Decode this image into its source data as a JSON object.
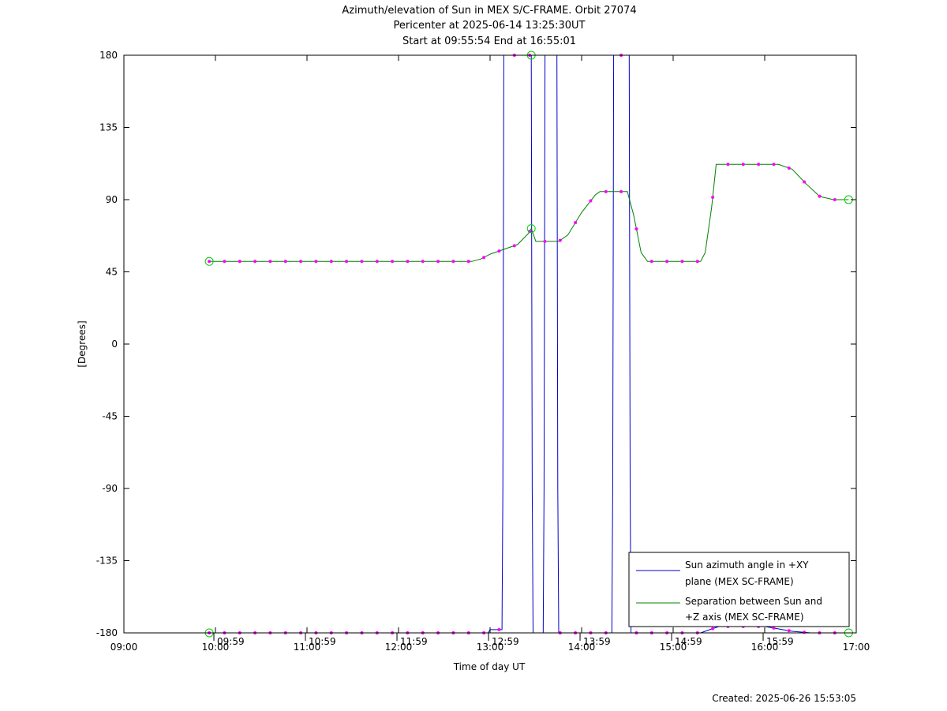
{
  "chart_data": {
    "type": "line",
    "title": "Azimuth/elevation of Sun in MEX S/C-FRAME.  Orbit 27074",
    "subtitle_1": "Pericenter at 2025-06-14 13:25:30UT",
    "subtitle_2": "Start at 09:55:54 End at 16:55:01",
    "xlabel": "Time of day UT",
    "ylabel": "[Degrees]",
    "x_unit": "hours of day (UT)",
    "xlim": [
      9,
      17
    ],
    "ylim": [
      -180,
      180
    ],
    "x_ticks": [
      {
        "value": 9,
        "label": "09:00"
      },
      {
        "value": 10,
        "label": "10:00"
      },
      {
        "value": 11,
        "label": "11:00"
      },
      {
        "value": 12,
        "label": "12:00"
      },
      {
        "value": 13,
        "label": "13:00"
      },
      {
        "value": 14,
        "label": "14:00"
      },
      {
        "value": 15,
        "label": "15:00"
      },
      {
        "value": 16,
        "label": "16:00"
      },
      {
        "value": 17,
        "label": "17:00"
      }
    ],
    "y_ticks": [
      {
        "value": 180,
        "label": "180"
      },
      {
        "value": 135,
        "label": "135"
      },
      {
        "value": 90,
        "label": "90"
      },
      {
        "value": 45,
        "label": "45"
      },
      {
        "value": 0,
        "label": "0"
      },
      {
        "value": -45,
        "label": "-45"
      },
      {
        "value": -90,
        "label": "-90"
      },
      {
        "value": -135,
        "label": "-135"
      },
      {
        "value": -180,
        "label": "-180"
      }
    ],
    "hour_marks": [
      {
        "value": 9.983,
        "label": "09:59"
      },
      {
        "value": 10.983,
        "label": "10:59"
      },
      {
        "value": 11.983,
        "label": "11:59"
      },
      {
        "value": 12.983,
        "label": "12:59"
      },
      {
        "value": 13.983,
        "label": "13:59"
      },
      {
        "value": 14.983,
        "label": "14:59"
      },
      {
        "value": 15.983,
        "label": "15:59"
      }
    ],
    "grid": false,
    "legend_position": "bottom-right",
    "series": [
      {
        "name_line1": "Sun azimuth angle in +XY",
        "name_line2": "plane (MEX SC-FRAME)",
        "color": "#0000cc",
        "points": [
          [
            9.932,
            -180
          ],
          [
            12.98,
            -180
          ],
          [
            13.0,
            -178
          ],
          [
            13.13,
            -178
          ],
          [
            13.14,
            -90
          ],
          [
            13.15,
            180
          ],
          [
            13.45,
            180
          ],
          [
            13.46,
            -90
          ],
          [
            13.47,
            -180
          ],
          [
            13.58,
            -180
          ],
          [
            13.59,
            -90
          ],
          [
            13.6,
            180
          ],
          [
            13.73,
            180
          ],
          [
            13.74,
            -90
          ],
          [
            13.75,
            -180
          ],
          [
            14.33,
            -180
          ],
          [
            14.34,
            -90
          ],
          [
            14.35,
            180
          ],
          [
            14.52,
            180
          ],
          [
            14.53,
            -90
          ],
          [
            14.54,
            -180
          ],
          [
            15.3,
            -180
          ],
          [
            15.5,
            -176
          ],
          [
            16.0,
            -176
          ],
          [
            16.3,
            -179
          ],
          [
            16.5,
            -180
          ],
          [
            16.917,
            -180
          ]
        ]
      },
      {
        "name_line1": "Separation between Sun and",
        "name_line2": "+Z axis (MEX SC-FRAME)",
        "color": "#008000",
        "points": [
          [
            9.932,
            51.5
          ],
          [
            12.8,
            51.5
          ],
          [
            12.9,
            53
          ],
          [
            13.0,
            56
          ],
          [
            13.15,
            59
          ],
          [
            13.3,
            62
          ],
          [
            13.42,
            69
          ],
          [
            13.45,
            72
          ],
          [
            13.5,
            64
          ],
          [
            13.75,
            64
          ],
          [
            13.85,
            68
          ],
          [
            14.0,
            82
          ],
          [
            14.15,
            93
          ],
          [
            14.2,
            95
          ],
          [
            14.5,
            95
          ],
          [
            14.57,
            80
          ],
          [
            14.65,
            57
          ],
          [
            14.72,
            51.5
          ],
          [
            15.3,
            51.5
          ],
          [
            15.35,
            57
          ],
          [
            15.42,
            85
          ],
          [
            15.47,
            112
          ],
          [
            16.15,
            112
          ],
          [
            16.3,
            109
          ],
          [
            16.45,
            100
          ],
          [
            16.6,
            92
          ],
          [
            16.75,
            90
          ],
          [
            16.917,
            90
          ]
        ]
      }
    ]
  },
  "created_text": "Created: 2025-06-26 15:53:05"
}
